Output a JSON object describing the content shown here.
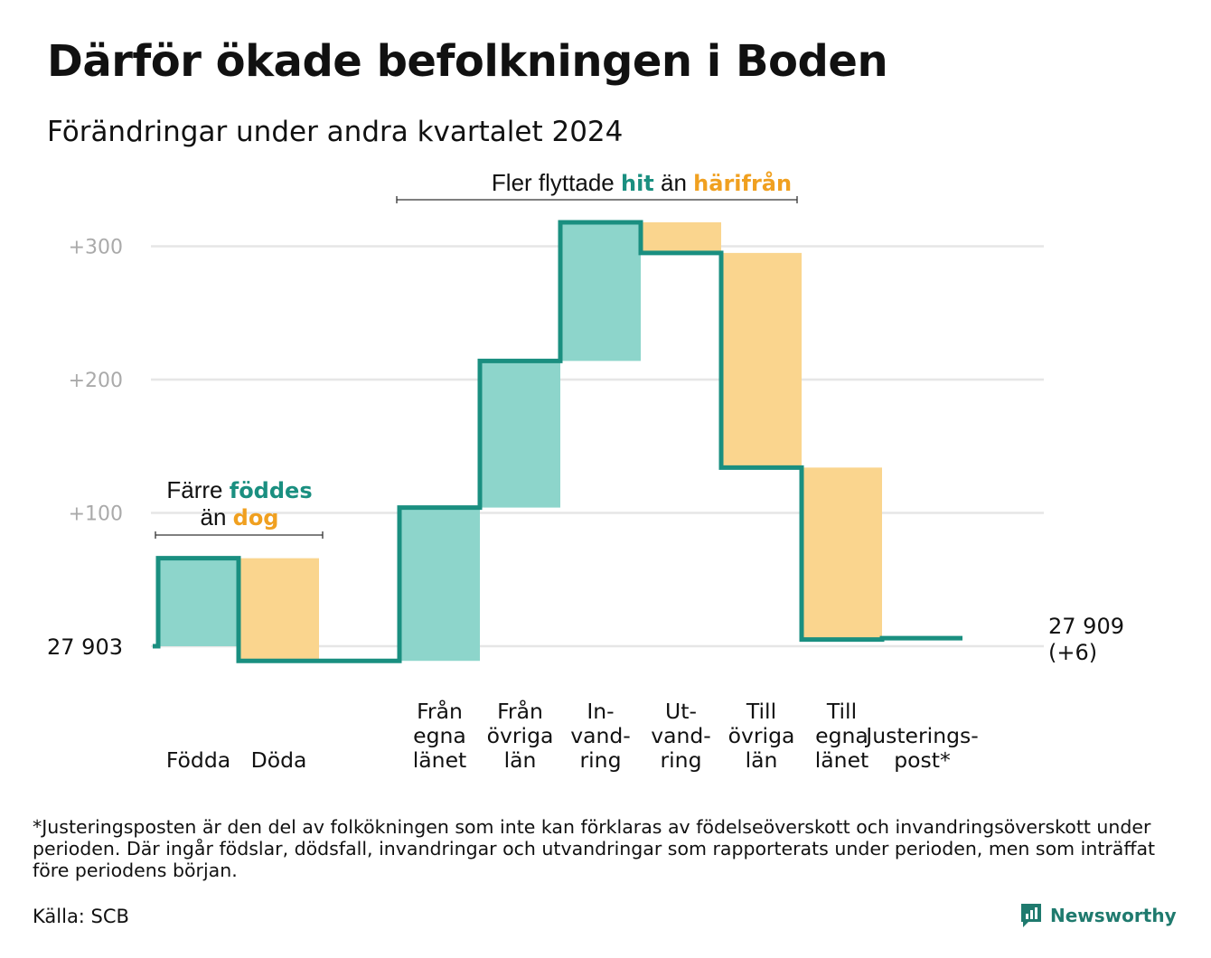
{
  "title": "Därför ökade befolkningen i Boden",
  "subtitle": "Förändringar under andra kvartalet 2024",
  "footnote": "*Justeringsposten är den del av folkökningen som inte kan förklaras av födelseöverskott och invandringsöverskott under perioden. Där ingår födslar, dödsfall, invandringar och utvandringar som rapporterats under perioden, men som inträffat före periodens början.",
  "source": "Källa: SCB",
  "brand": "Newsworthy",
  "annotations": {
    "births": {
      "pre": "Färre",
      "hit": "föddes",
      "mid": "än",
      "away": "dog"
    },
    "migration": {
      "pre": "Fler flyttade",
      "hit": "hit",
      "mid": "än",
      "away": "härifrån"
    }
  },
  "colors": {
    "increase": "#8dd5cb",
    "decrease": "#fad58e",
    "line": "#1a8f80",
    "grid": "#e6e6e6",
    "tick": "#aaaaaa"
  },
  "chart_data": {
    "type": "waterfall",
    "start_label": "27  903",
    "end_label": [
      "27 909",
      "(+6)"
    ],
    "yticks": [
      {
        "value": 100,
        "label": "+100"
      },
      {
        "value": 200,
        "label": "+200"
      },
      {
        "value": 300,
        "label": "+300"
      }
    ],
    "ylim": [
      -15,
      320
    ],
    "grid": true,
    "steps": [
      {
        "label": [
          "Födda"
        ],
        "start": 0,
        "end": 66,
        "kind": "increase"
      },
      {
        "label": [
          "Döda"
        ],
        "start": 66,
        "end": -11,
        "kind": "decrease"
      },
      {
        "label": [],
        "start": -11,
        "end": -11,
        "kind": "none"
      },
      {
        "label": [
          "Från",
          "egna",
          "länet"
        ],
        "start": -11,
        "end": 104,
        "kind": "increase"
      },
      {
        "label": [
          "Från",
          "övriga",
          "län"
        ],
        "start": 104,
        "end": 214,
        "kind": "increase"
      },
      {
        "label": [
          "In-",
          "vand-",
          "ring"
        ],
        "start": 214,
        "end": 318,
        "kind": "increase"
      },
      {
        "label": [
          "Ut-",
          "vand-",
          "ring"
        ],
        "start": 318,
        "end": 295,
        "kind": "decrease"
      },
      {
        "label": [
          "Till",
          "övriga",
          "län"
        ],
        "start": 295,
        "end": 134,
        "kind": "decrease"
      },
      {
        "label": [
          "Till",
          "egna",
          "länet"
        ],
        "start": 134,
        "end": 5,
        "kind": "decrease"
      },
      {
        "label": [
          "Justerings-",
          "post*"
        ],
        "start": 5,
        "end": 6,
        "kind": "none"
      }
    ]
  }
}
